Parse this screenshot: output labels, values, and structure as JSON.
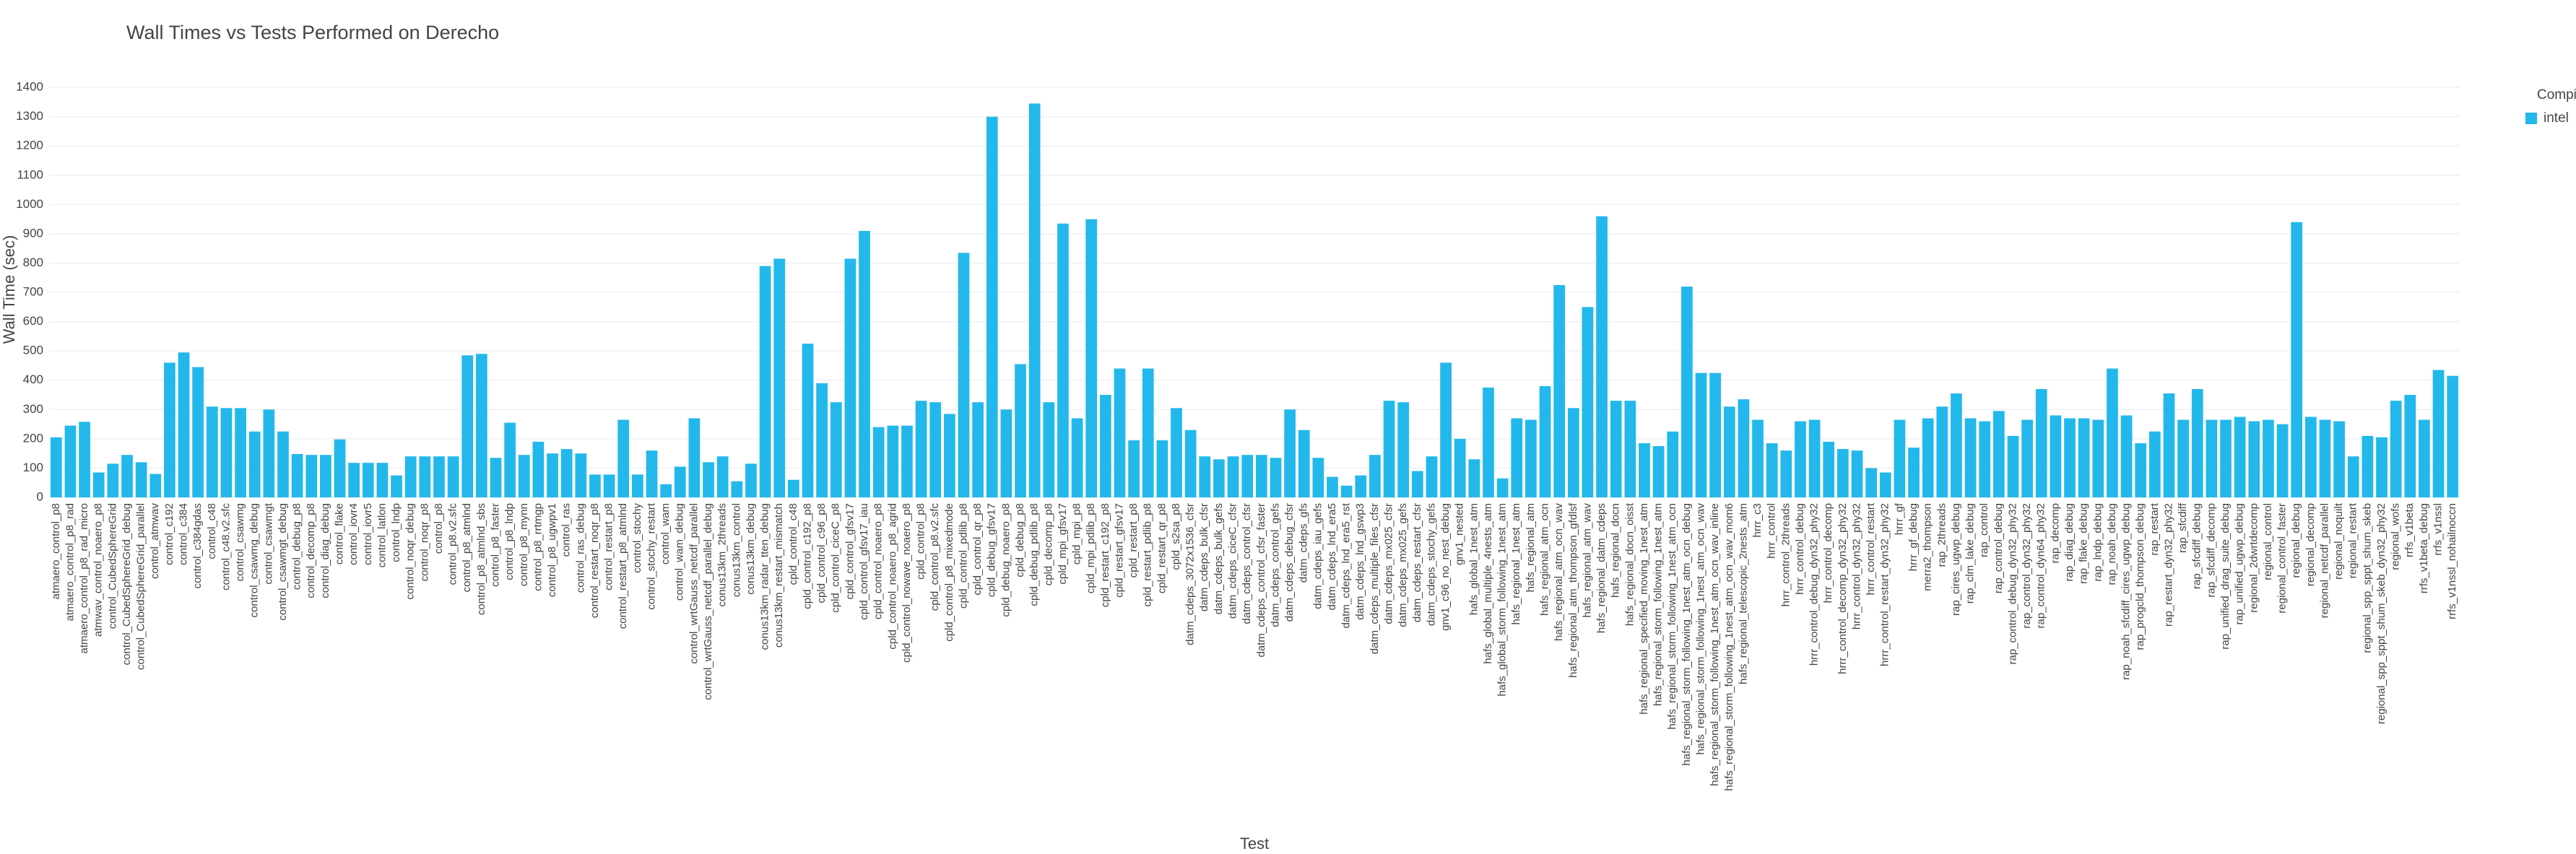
{
  "chart_data": {
    "type": "bar",
    "title": "Wall Times vs Tests Performed on Derecho",
    "x_label": "Test",
    "y_label": "Wall Time (sec)",
    "legend_title": "Compiler",
    "grid": true,
    "ylim": [
      0,
      1420
    ],
    "yticks": [
      0,
      100,
      200,
      300,
      400,
      500,
      600,
      700,
      800,
      900,
      1000,
      1100,
      1200,
      1300,
      1400
    ],
    "categories": [
      "atmaero_control_p8",
      "atmaero_control_p8_rad",
      "atmaero_control_p8_rad_micro",
      "atmwav_control_noaero_p8",
      "control_CubedSphereGrid",
      "control_CubedSphereGrid_debug",
      "control_CubedSphereGrid_parallel",
      "control_atmwav",
      "control_c192",
      "control_c384",
      "control_c384gdas",
      "control_c48",
      "control_c48.v2.sfc",
      "control_csawmg",
      "control_csawmg_debug",
      "control_csawmgt",
      "control_csawmgt_debug",
      "control_debug_p8",
      "control_decomp_p8",
      "control_diag_debug",
      "control_flake",
      "control_iovr4",
      "control_iovr5",
      "control_latlon",
      "control_lndp",
      "control_noqr_debug",
      "control_noqr_p8",
      "control_p8",
      "control_p8.v2.sfc",
      "control_p8_atmlnd",
      "control_p8_atmlnd_sbs",
      "control_p8_faster",
      "control_p8_lndp",
      "control_p8_mynn",
      "control_p8_rrtmgp",
      "control_p8_ugwpv1",
      "control_ras",
      "control_ras_debug",
      "control_restart_noqr_p8",
      "control_restart_p8",
      "control_restart_p8_atmlnd",
      "control_stochy",
      "control_stochy_restart",
      "control_wam",
      "control_wam_debug",
      "control_wrtGauss_netcdf_parallel",
      "control_wrtGauss_netcdf_parallel_debug",
      "conus13km_2threads",
      "conus13km_control",
      "conus13km_debug",
      "conus13km_radar_tten_debug",
      "conus13km_restart_mismatch",
      "cpld_control_c48",
      "cpld_control_c192_p8",
      "cpld_control_c96_p8",
      "cpld_control_ciceC_p8",
      "cpld_control_gfsv17",
      "cpld_control_gfsv17_iau",
      "cpld_control_noaero_p8",
      "cpld_control_noaero_p8_agrid",
      "cpld_control_nowave_noaero_p8",
      "cpld_control_p8",
      "cpld_control_p8.v2.sfc",
      "cpld_control_p8_mixedmode",
      "cpld_control_pdlib_p8",
      "cpld_control_qr_p8",
      "cpld_debug_gfsv17",
      "cpld_debug_noaero_p8",
      "cpld_debug_p8",
      "cpld_debug_pdlib_p8",
      "cpld_decomp_p8",
      "cpld_mpi_gfsv17",
      "cpld_mpi_p8",
      "cpld_mpi_pdlib_p8",
      "cpld_restart_c192_p8",
      "cpld_restart_gfsv17",
      "cpld_restart_p8",
      "cpld_restart_pdlib_p8",
      "cpld_restart_qr_p8",
      "cpld_s2sa_p8",
      "datm_cdeps_3072x1536_cfsr",
      "datm_cdeps_bulk_cfsr",
      "datm_cdeps_bulk_gefs",
      "datm_cdeps_ciceC_cfsr",
      "datm_cdeps_control_cfsr",
      "datm_cdeps_control_cfsr_faster",
      "datm_cdeps_control_gefs",
      "datm_cdeps_debug_cfsr",
      "datm_cdeps_gfs",
      "datm_cdeps_iau_gefs",
      "datm_cdeps_lnd_era5",
      "datm_cdeps_lnd_era5_rst",
      "datm_cdeps_lnd_gswp3",
      "datm_cdeps_multiple_files_cfsr",
      "datm_cdeps_mx025_cfsr",
      "datm_cdeps_mx025_gefs",
      "datm_cdeps_restart_cfsr",
      "datm_cdeps_stochy_gefs",
      "gnv1_c96_no_nest_debug",
      "gnv1_nested",
      "hafs_global_1nest_atm",
      "hafs_global_multiple_4nests_atm",
      "hafs_global_storm_following_1nest_atm",
      "hafs_regional_1nest_atm",
      "hafs_regional_atm",
      "hafs_regional_atm_ocn",
      "hafs_regional_atm_ocn_wav",
      "hafs_regional_atm_thompson_gfdlsf",
      "hafs_regional_atm_wav",
      "hafs_regional_datm_cdeps",
      "hafs_regional_docn",
      "hafs_regional_docn_oisst",
      "hafs_regional_specified_moving_1nest_atm",
      "hafs_regional_storm_following_1nest_atm",
      "hafs_regional_storm_following_1nest_atm_ocn",
      "hafs_regional_storm_following_1nest_atm_ocn_debug",
      "hafs_regional_storm_following_1nest_atm_ocn_wav",
      "hafs_regional_storm_following_1nest_atm_ocn_wav_inline",
      "hafs_regional_storm_following_1nest_atm_ocn_wav_mom6",
      "hafs_regional_telescopic_2nests_atm",
      "hrrr_c3",
      "hrrr_control",
      "hrrr_control_2threads",
      "hrrr_control_debug",
      "hrrr_control_debug_dyn32_phy32",
      "hrrr_control_decomp",
      "hrrr_control_decomp_dyn32_phy32",
      "hrrr_control_dyn32_phy32",
      "hrrr_control_restart",
      "hrrr_control_restart_dyn32_phy32",
      "hrrr_gf",
      "hrrr_gf_debug",
      "merra2_thompson",
      "rap_2threads",
      "rap_cires_ugwp_debug",
      "rap_clm_lake_debug",
      "rap_control",
      "rap_control_debug",
      "rap_control_debug_dyn32_phy32",
      "rap_control_dyn32_phy32",
      "rap_control_dyn64_phy32",
      "rap_decomp",
      "rap_diag_debug",
      "rap_flake_debug",
      "rap_lndp_debug",
      "rap_noah_debug",
      "rap_noah_sfcdiff_cires_ugwp_debug",
      "rap_progcld_thompson_debug",
      "rap_restart",
      "rap_restart_dyn32_phy32",
      "rap_sfcdiff",
      "rap_sfcdiff_debug",
      "rap_sfcdiff_decomp",
      "rap_unified_drag_suite_debug",
      "rap_unified_ugwp_debug",
      "regional_2dwrtdecomp",
      "regional_control",
      "regional_control_faster",
      "regional_debug",
      "regional_decomp",
      "regional_netcdf_parallel",
      "regional_noquilt",
      "regional_restart",
      "regional_spp_sppt_shum_skeb",
      "regional_spp_sppt_shum_skeb_dyn32_phy32",
      "regional_wofs",
      "rrfs_v1beta",
      "rrfs_v1beta_debug",
      "rrfs_v1nssl",
      "rrfs_v1nssl_nohailnoccn"
    ],
    "series": [
      {
        "name": "intel",
        "color": "#22b8ec",
        "values": [
          205,
          245,
          258,
          85,
          115,
          145,
          120,
          80,
          460,
          495,
          445,
          310,
          305,
          305,
          225,
          300,
          225,
          148,
          145,
          145,
          198,
          118,
          118,
          118,
          75,
          140,
          140,
          140,
          140,
          485,
          490,
          135,
          255,
          145,
          190,
          150,
          165,
          150,
          78,
          78,
          265,
          78,
          160,
          45,
          105,
          270,
          120,
          140,
          55,
          115,
          790,
          815,
          60,
          525,
          390,
          325,
          815,
          910,
          240,
          245,
          245,
          330,
          325,
          285,
          835,
          325,
          1300,
          300,
          455,
          1345,
          325,
          935,
          270,
          950,
          350,
          440,
          195,
          440,
          195,
          305,
          230,
          140,
          130,
          140,
          145,
          145,
          135,
          300,
          230,
          135,
          70,
          40,
          75,
          145,
          330,
          325,
          90,
          140,
          460,
          200,
          130,
          375,
          65,
          270,
          265,
          380,
          725,
          305,
          650,
          960,
          330,
          330,
          185,
          175,
          225,
          720,
          425,
          425,
          310,
          335,
          265,
          185,
          160,
          260,
          265,
          190,
          165,
          160,
          100,
          85,
          265,
          170,
          270,
          310,
          355,
          270,
          260,
          295,
          210,
          265,
          370,
          280,
          270,
          270,
          265,
          440,
          280,
          185,
          225,
          355,
          265,
          370,
          265,
          265,
          275,
          260,
          265,
          250,
          940,
          275,
          265,
          260,
          140,
          210,
          205,
          330,
          350,
          265,
          435,
          415
        ]
      }
    ]
  }
}
